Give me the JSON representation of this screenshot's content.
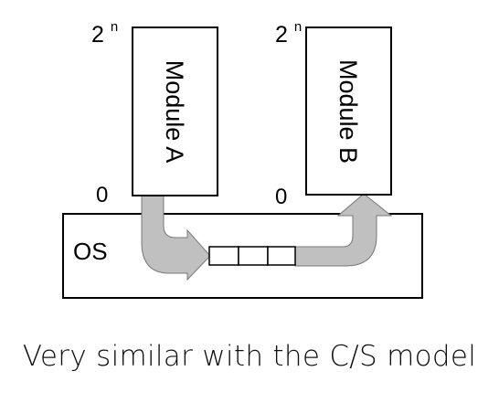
{
  "modules": [
    {
      "label": "Module A",
      "top_label": "2",
      "top_superscript": "n",
      "bottom_label": "0"
    },
    {
      "label": "Module B",
      "top_label": "2",
      "top_superscript": "n",
      "bottom_label": "0"
    }
  ],
  "os": {
    "label": "OS"
  },
  "queue": {
    "slot_count": 3
  },
  "caption": "Very similar with the C/S model",
  "colors": {
    "stroke": "#000000",
    "arrow_fill": "#c0c0c0",
    "arrow_stroke": "#777777",
    "background": "#ffffff"
  }
}
